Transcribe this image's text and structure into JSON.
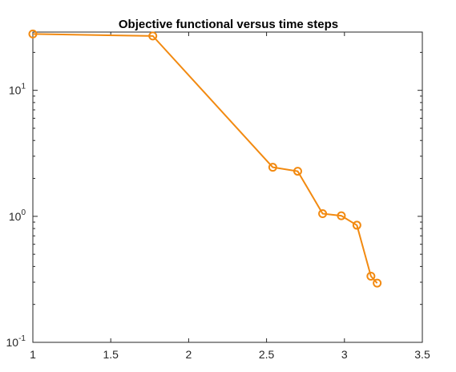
{
  "chart_data": {
    "type": "line",
    "title": "Objective functional versus time steps",
    "xlabel": "",
    "ylabel": "",
    "xlim": [
      1,
      3.5
    ],
    "ylim": [
      0.1,
      29
    ],
    "yscale": "log",
    "grid": false,
    "x_ticks": [
      "1",
      "1.5",
      "2",
      "2.5",
      "3",
      "3.5"
    ],
    "y_ticks": [
      {
        "base": "10",
        "exp": "-1"
      },
      {
        "base": "10",
        "exp": "0"
      },
      {
        "base": "10",
        "exp": "1"
      }
    ],
    "series": [
      {
        "color": "#f28a11",
        "marker": "circle",
        "x": [
          1.0,
          1.77,
          2.54,
          2.7,
          2.86,
          2.98,
          3.08,
          3.17,
          3.21
        ],
        "y": [
          28.0,
          27.0,
          2.45,
          2.28,
          1.05,
          1.01,
          0.85,
          0.335,
          0.295
        ]
      }
    ]
  }
}
